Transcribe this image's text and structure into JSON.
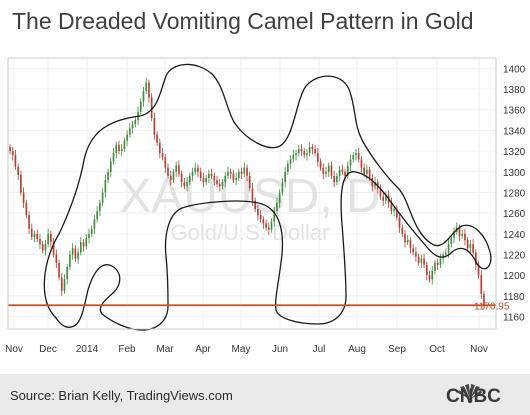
{
  "title": "The Dreaded Vomiting Camel Pattern in Gold",
  "source": "Source: Brian Kelly, TradingViews.com",
  "brand": "CNBC",
  "chart_data": {
    "type": "candlestick",
    "watermark_symbol": "XAUUSD, D",
    "watermark_name": "Gold/U.S. Dollar",
    "x_tick_labels": [
      "Nov",
      "Dec",
      "2014",
      "Feb",
      "Mar",
      "Apr",
      "May",
      "Jun",
      "Jul",
      "Aug",
      "Sep",
      "Oct",
      "Nov"
    ],
    "y_ticks": [
      1160,
      1180,
      1200,
      1220,
      1240,
      1260,
      1280,
      1300,
      1320,
      1340,
      1360,
      1380,
      1400
    ],
    "ylim": [
      1148,
      1410
    ],
    "support_level": 1170.95,
    "support_label": "1170.95",
    "close": [
      1320,
      1316,
      1305,
      1297,
      1280,
      1270,
      1258,
      1245,
      1237,
      1240,
      1235,
      1230,
      1224,
      1230,
      1240,
      1232,
      1220,
      1212,
      1198,
      1185,
      1196,
      1208,
      1220,
      1226,
      1216,
      1222,
      1232,
      1228,
      1236,
      1240,
      1245,
      1254,
      1262,
      1270,
      1280,
      1292,
      1300,
      1310,
      1318,
      1326,
      1320,
      1322,
      1330,
      1336,
      1342,
      1346,
      1350,
      1358,
      1368,
      1378,
      1386,
      1372,
      1352,
      1336,
      1328,
      1318,
      1314,
      1304,
      1296,
      1292,
      1300,
      1306,
      1298,
      1290,
      1286,
      1290,
      1296,
      1300,
      1304,
      1300,
      1294,
      1290,
      1294,
      1298,
      1296,
      1292,
      1288,
      1286,
      1290,
      1296,
      1300,
      1298,
      1292,
      1294,
      1300,
      1298,
      1304,
      1296,
      1284,
      1272,
      1264,
      1258,
      1254,
      1250,
      1246,
      1244,
      1252,
      1262,
      1270,
      1280,
      1290,
      1300,
      1308,
      1312,
      1316,
      1318,
      1322,
      1320,
      1316,
      1318,
      1324,
      1322,
      1318,
      1310,
      1304,
      1298,
      1300,
      1306,
      1296,
      1290,
      1296,
      1302,
      1300,
      1296,
      1306,
      1312,
      1316,
      1318,
      1312,
      1304,
      1298,
      1302,
      1294,
      1286,
      1290,
      1284,
      1276,
      1272,
      1278,
      1270,
      1262,
      1264,
      1256,
      1246,
      1240,
      1232,
      1234,
      1226,
      1222,
      1218,
      1212,
      1216,
      1210,
      1200,
      1196,
      1204,
      1212,
      1210,
      1216,
      1220,
      1222,
      1230,
      1236,
      1242,
      1246,
      1238,
      1240,
      1234,
      1226,
      1230,
      1222,
      1210,
      1200,
      1182,
      1170
    ]
  }
}
